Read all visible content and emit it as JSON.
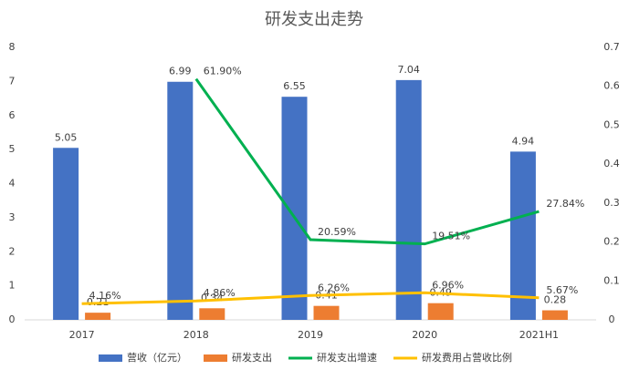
{
  "chart_data": {
    "type": "bar-line",
    "title": "研发支出走势",
    "categories": [
      "2017",
      "2018",
      "2019",
      "2020",
      "2021H1"
    ],
    "series": [
      {
        "name": "营收（亿元）",
        "type": "bar",
        "color": "#4472c4",
        "values": [
          5.05,
          6.99,
          6.55,
          7.04,
          4.94
        ]
      },
      {
        "name": "研发支出",
        "type": "bar",
        "color": "#ed7d31",
        "values": [
          0.21,
          0.34,
          0.41,
          0.49,
          0.28
        ]
      },
      {
        "name": "研发支出增速",
        "type": "line",
        "axis": "y2",
        "color": "#00b050",
        "values": [
          null,
          0.619,
          0.2059,
          0.1951,
          0.2784
        ],
        "value_labels": [
          null,
          "61.90%",
          "20.59%",
          "19.51%",
          "27.84%"
        ]
      },
      {
        "name": "研发费用占营收比例",
        "type": "line",
        "axis": "y2",
        "color": "#ffc000",
        "values": [
          0.0416,
          0.0486,
          0.0626,
          0.0696,
          0.0567
        ],
        "value_labels": [
          "4.16%",
          "4.86%",
          "6.26%",
          "6.96%",
          "5.67%"
        ]
      }
    ],
    "ylim": [
      0,
      8
    ],
    "yticks": [
      0,
      1,
      2,
      3,
      4,
      5,
      6,
      7,
      8
    ],
    "y2lim": [
      0,
      0.7
    ],
    "y2ticks": [
      0,
      0.1,
      0.2,
      0.3,
      0.4,
      0.5,
      0.6,
      0.7
    ],
    "legend": "bottom"
  }
}
